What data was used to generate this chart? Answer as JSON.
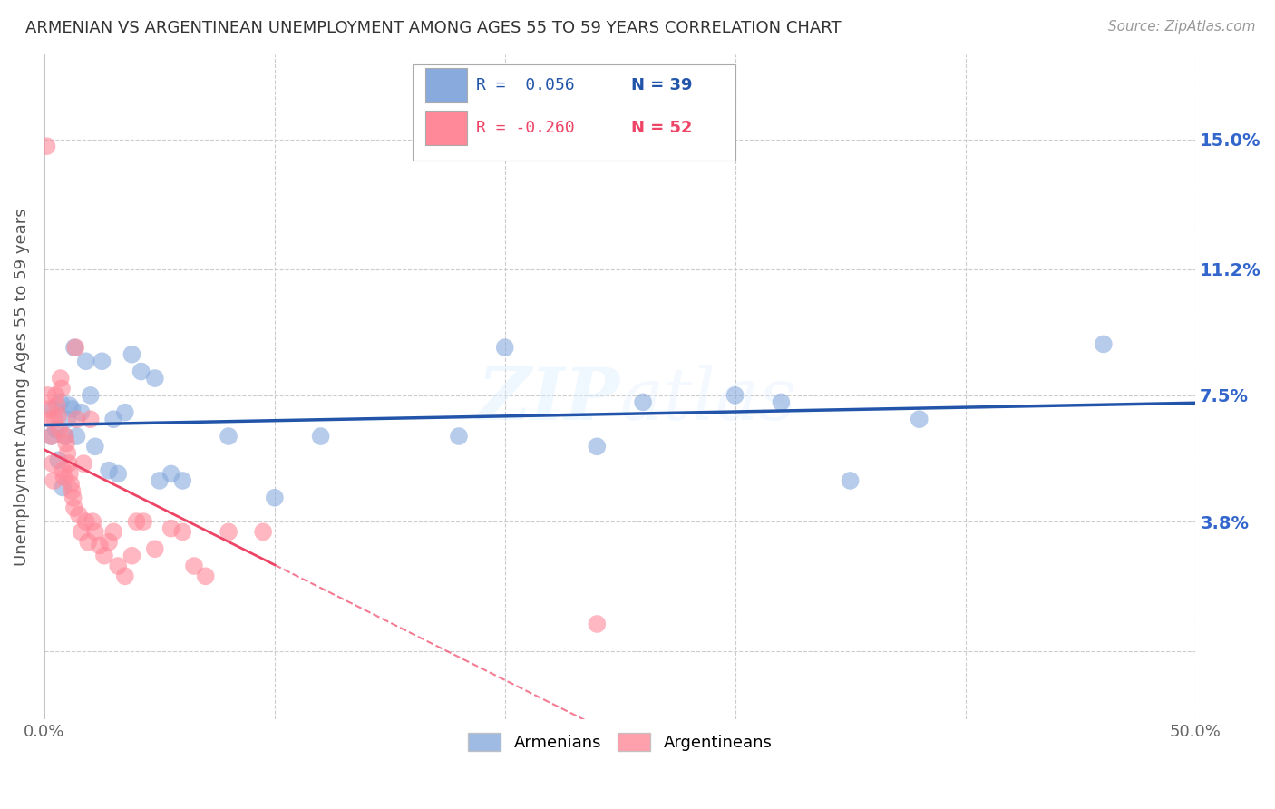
{
  "title": "ARMENIAN VS ARGENTINEAN UNEMPLOYMENT AMONG AGES 55 TO 59 YEARS CORRELATION CHART",
  "source": "Source: ZipAtlas.com",
  "ylabel": "Unemployment Among Ages 55 to 59 years",
  "xlim": [
    0.0,
    50.0
  ],
  "ylim": [
    -2.0,
    17.5
  ],
  "yticks": [
    0.0,
    3.8,
    7.5,
    11.2,
    15.0
  ],
  "ytick_labels": [
    "",
    "3.8%",
    "7.5%",
    "11.2%",
    "15.0%"
  ],
  "xticks": [
    0.0,
    10.0,
    20.0,
    30.0,
    40.0,
    50.0
  ],
  "xtick_labels": [
    "0.0%",
    "",
    "",
    "",
    "",
    "50.0%"
  ],
  "armenian_color": "#88AADD",
  "argentinean_color": "#FF8899",
  "line_color_armenian": "#2255AA",
  "line_color_argentinean": "#EE4466",
  "background_color": "#FFFFFF",
  "grid_color": "#CCCCCC",
  "axis_label_color": "#3366CC",
  "title_color": "#333333",
  "legend_R_armenian": "R =  0.056",
  "legend_N_armenian": "N = 39",
  "legend_R_argentinean": "R = -0.260",
  "legend_N_argentinean": "N = 52",
  "armenian_data": [
    [
      0.3,
      6.3
    ],
    [
      0.4,
      7.1
    ],
    [
      0.5,
      6.5
    ],
    [
      0.6,
      5.6
    ],
    [
      0.7,
      7.3
    ],
    [
      0.8,
      4.8
    ],
    [
      0.9,
      6.3
    ],
    [
      1.0,
      6.8
    ],
    [
      1.1,
      7.2
    ],
    [
      1.2,
      7.1
    ],
    [
      1.3,
      8.9
    ],
    [
      1.4,
      6.3
    ],
    [
      1.6,
      7.0
    ],
    [
      1.8,
      8.5
    ],
    [
      2.0,
      7.5
    ],
    [
      2.2,
      6.0
    ],
    [
      2.5,
      8.5
    ],
    [
      2.8,
      5.3
    ],
    [
      3.0,
      6.8
    ],
    [
      3.2,
      5.2
    ],
    [
      3.5,
      7.0
    ],
    [
      3.8,
      8.7
    ],
    [
      4.2,
      8.2
    ],
    [
      4.8,
      8.0
    ],
    [
      5.0,
      5.0
    ],
    [
      5.5,
      5.2
    ],
    [
      6.0,
      5.0
    ],
    [
      8.0,
      6.3
    ],
    [
      10.0,
      4.5
    ],
    [
      12.0,
      6.3
    ],
    [
      18.0,
      6.3
    ],
    [
      20.0,
      8.9
    ],
    [
      24.0,
      6.0
    ],
    [
      26.0,
      7.3
    ],
    [
      30.0,
      7.5
    ],
    [
      32.0,
      7.3
    ],
    [
      35.0,
      5.0
    ],
    [
      38.0,
      6.8
    ],
    [
      46.0,
      9.0
    ]
  ],
  "argentinean_data": [
    [
      0.1,
      14.8
    ],
    [
      0.15,
      7.5
    ],
    [
      0.2,
      7.1
    ],
    [
      0.25,
      6.8
    ],
    [
      0.3,
      6.3
    ],
    [
      0.35,
      5.5
    ],
    [
      0.4,
      5.0
    ],
    [
      0.45,
      6.8
    ],
    [
      0.5,
      7.5
    ],
    [
      0.55,
      7.2
    ],
    [
      0.6,
      6.9
    ],
    [
      0.65,
      6.5
    ],
    [
      0.7,
      8.0
    ],
    [
      0.75,
      7.7
    ],
    [
      0.8,
      5.3
    ],
    [
      0.85,
      5.1
    ],
    [
      0.9,
      6.3
    ],
    [
      0.95,
      6.1
    ],
    [
      1.0,
      5.8
    ],
    [
      1.05,
      5.5
    ],
    [
      1.1,
      5.2
    ],
    [
      1.15,
      4.9
    ],
    [
      1.2,
      4.7
    ],
    [
      1.25,
      4.5
    ],
    [
      1.3,
      4.2
    ],
    [
      1.35,
      8.9
    ],
    [
      1.4,
      6.8
    ],
    [
      1.5,
      4.0
    ],
    [
      1.6,
      3.5
    ],
    [
      1.7,
      5.5
    ],
    [
      1.8,
      3.8
    ],
    [
      1.9,
      3.2
    ],
    [
      2.0,
      6.8
    ],
    [
      2.1,
      3.8
    ],
    [
      2.2,
      3.5
    ],
    [
      2.4,
      3.1
    ],
    [
      2.6,
      2.8
    ],
    [
      2.8,
      3.2
    ],
    [
      3.0,
      3.5
    ],
    [
      3.2,
      2.5
    ],
    [
      3.5,
      2.2
    ],
    [
      3.8,
      2.8
    ],
    [
      4.0,
      3.8
    ],
    [
      4.3,
      3.8
    ],
    [
      4.8,
      3.0
    ],
    [
      5.5,
      3.6
    ],
    [
      6.0,
      3.5
    ],
    [
      6.5,
      2.5
    ],
    [
      7.0,
      2.2
    ],
    [
      8.0,
      3.5
    ],
    [
      9.5,
      3.5
    ],
    [
      24.0,
      0.8
    ]
  ]
}
